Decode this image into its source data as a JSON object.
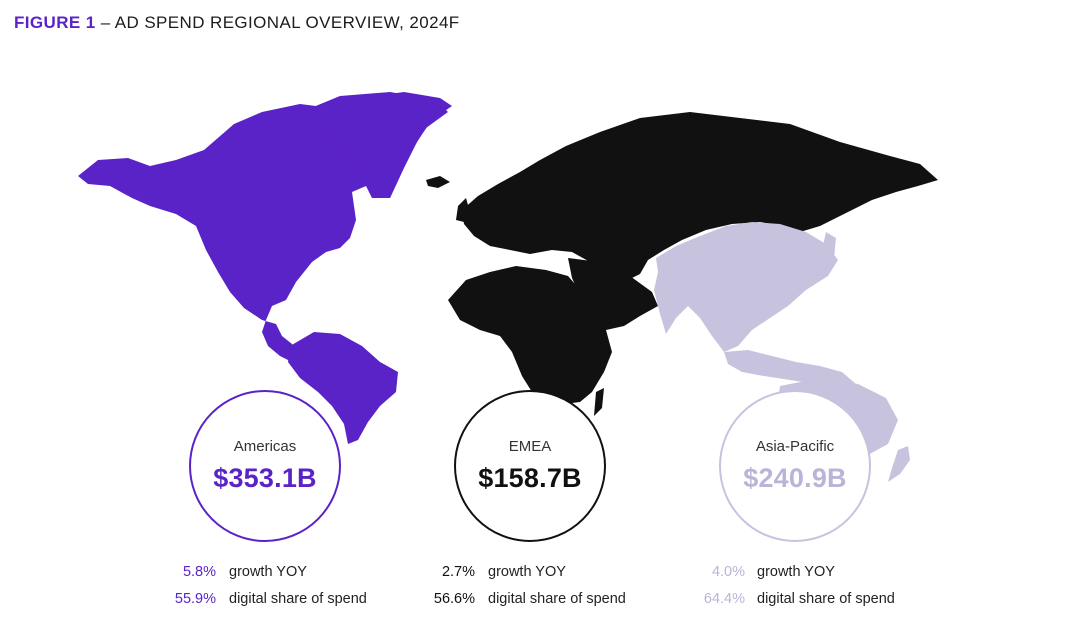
{
  "figure": {
    "label": "FIGURE 1",
    "dash": "–",
    "title": "AD SPEND REGIONAL OVERVIEW, 2024F"
  },
  "colors": {
    "americas": "#5a23c8",
    "emea": "#111111",
    "asia_pacific": "#c7c3de"
  },
  "regions": [
    {
      "name": "Americas",
      "ad_spend": "$353.1B",
      "growth_yoy": "5.8%",
      "growth_label": "growth YOY",
      "digital_share": "55.9%",
      "digital_label": "digital share of spend"
    },
    {
      "name": "EMEA",
      "ad_spend": "$158.7B",
      "growth_yoy": "2.7%",
      "growth_label": "growth YOY",
      "digital_share": "56.6%",
      "digital_label": "digital share of spend"
    },
    {
      "name": "Asia-Pacific",
      "ad_spend": "$240.9B",
      "growth_yoy": "4.0%",
      "growth_label": "growth YOY",
      "digital_share": "64.4%",
      "digital_label": "digital share of spend"
    }
  ]
}
